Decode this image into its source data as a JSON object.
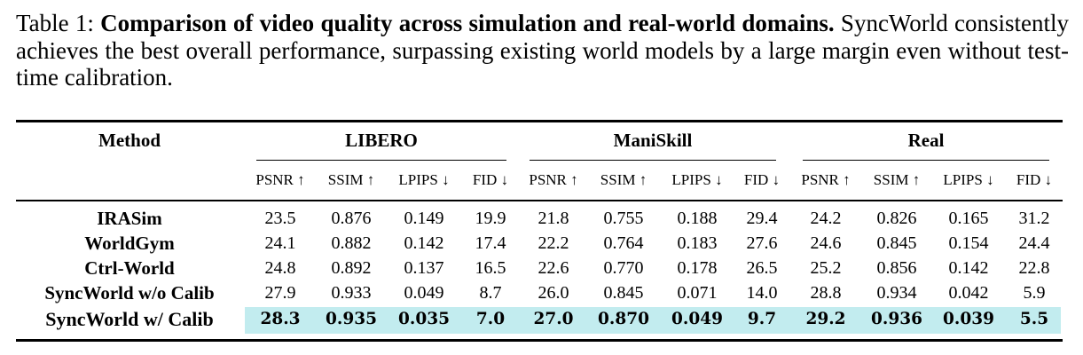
{
  "caption": {
    "prefix": "Table 1: ",
    "bold": "Comparison of video quality across simulation and real-world domains.",
    "rest": " SyncWorld consistently achieves the best overall performance, surpassing existing world models by a large margin even without test-time calibration."
  },
  "table": {
    "method_header": "Method",
    "groups": [
      "LIBERO",
      "ManiSkill",
      "Real"
    ],
    "metrics": [
      "PSNR ↑",
      "SSIM ↑",
      "LPIPS ↓",
      "FID ↓"
    ],
    "rows": [
      {
        "method": "IRASim",
        "values": [
          "23.5",
          "0.876",
          "0.149",
          "19.9",
          "21.8",
          "0.755",
          "0.188",
          "29.4",
          "24.2",
          "0.826",
          "0.165",
          "31.2"
        ]
      },
      {
        "method": "WorldGym",
        "values": [
          "24.1",
          "0.882",
          "0.142",
          "17.4",
          "22.2",
          "0.764",
          "0.183",
          "27.6",
          "24.6",
          "0.845",
          "0.154",
          "24.4"
        ]
      },
      {
        "method": "Ctrl-World",
        "values": [
          "24.8",
          "0.892",
          "0.137",
          "16.5",
          "22.6",
          "0.770",
          "0.178",
          "26.5",
          "25.2",
          "0.856",
          "0.142",
          "22.8"
        ]
      },
      {
        "method": "SyncWorld w/o Calib",
        "values": [
          "27.9",
          "0.933",
          "0.049",
          "8.7",
          "26.0",
          "0.845",
          "0.071",
          "14.0",
          "28.8",
          "0.934",
          "0.042",
          "5.9"
        ]
      },
      {
        "method": "SyncWorld w/ Calib",
        "values": [
          "28.3",
          "0.935",
          "0.035",
          "7.0",
          "27.0",
          "0.870",
          "0.049",
          "9.7",
          "29.2",
          "0.936",
          "0.039",
          "5.5"
        ]
      }
    ],
    "highlight_color": "#c2ecef"
  }
}
